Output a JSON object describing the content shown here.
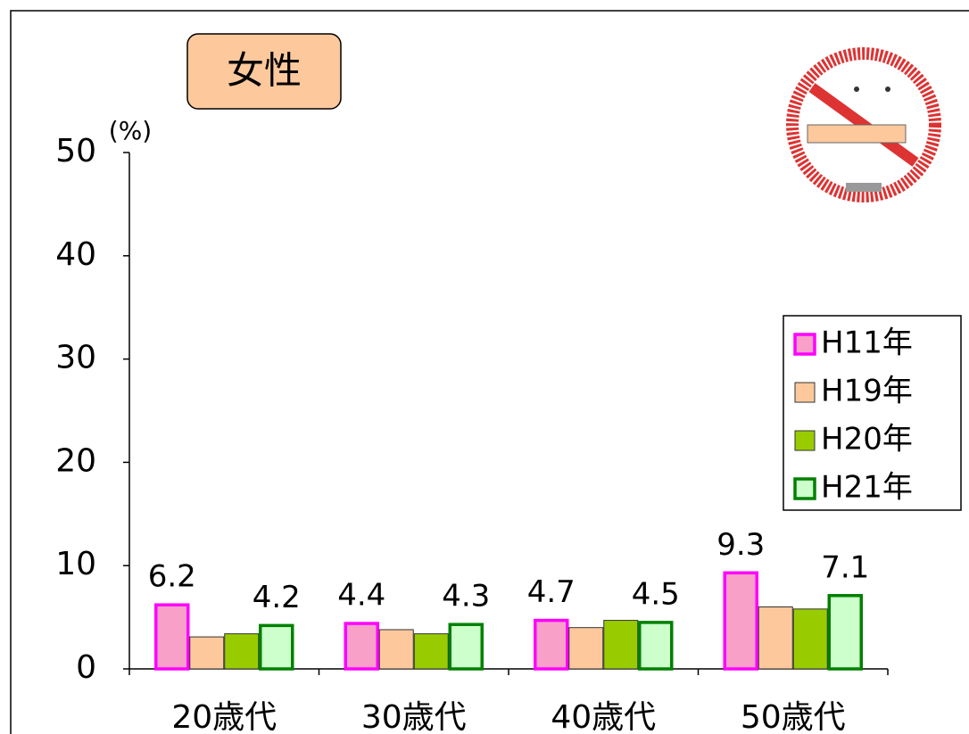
{
  "chart_data": {
    "type": "bar",
    "title": "女性",
    "y_unit": "(%)",
    "categories": [
      "20歳代",
      "30歳代",
      "40歳代",
      "50歳代"
    ],
    "series": [
      {
        "name": "H11年",
        "color": "#f9a0c8",
        "stroke": "#ff00ff",
        "show_labels": true,
        "values": [
          6.2,
          4.4,
          4.7,
          9.3
        ]
      },
      {
        "name": "H19年",
        "color": "#fcc89c",
        "stroke": "#333333",
        "show_labels": false,
        "values": [
          3.1,
          3.8,
          4.0,
          6.0
        ]
      },
      {
        "name": "H20年",
        "color": "#99cc00",
        "stroke": "#333333",
        "show_labels": false,
        "values": [
          3.4,
          3.4,
          4.7,
          5.8
        ]
      },
      {
        "name": "H21年",
        "color": "#ccffcc",
        "stroke": "#008000",
        "show_labels": true,
        "values": [
          4.2,
          4.3,
          4.5,
          7.1
        ]
      }
    ],
    "ylim": [
      0,
      50
    ],
    "yticks": [
      0,
      10,
      20,
      30,
      40,
      50
    ],
    "legend": "right"
  }
}
